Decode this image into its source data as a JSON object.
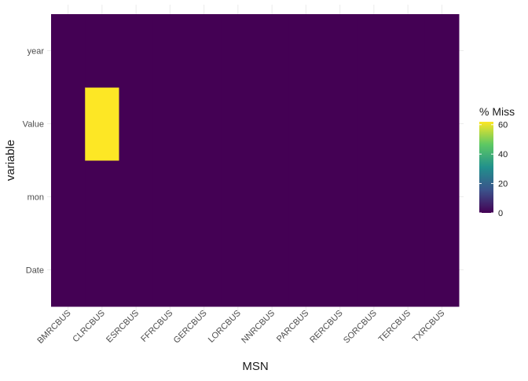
{
  "chart_data": {
    "type": "heatmap",
    "title": "",
    "xlabel": "MSN",
    "ylabel": "variable",
    "x_categories": [
      "BMRCBUS",
      "CLRCBUS",
      "ESRCBUS",
      "FFRCBUS",
      "GERCBUS",
      "LORCBUS",
      "NNRCBUS",
      "PARCBUS",
      "RERCBUS",
      "SORCBUS",
      "TERCBUS",
      "TXRCBUS"
    ],
    "y_categories": [
      "Date",
      "mon",
      "Value",
      "year"
    ],
    "cells": [
      {
        "x": "BMRCBUS",
        "y": "Date",
        "value": 0
      },
      {
        "x": "BMRCBUS",
        "y": "mon",
        "value": 0
      },
      {
        "x": "BMRCBUS",
        "y": "Value",
        "value": 0
      },
      {
        "x": "BMRCBUS",
        "y": "year",
        "value": 0
      },
      {
        "x": "CLRCBUS",
        "y": "Date",
        "value": 0
      },
      {
        "x": "CLRCBUS",
        "y": "mon",
        "value": 0
      },
      {
        "x": "CLRCBUS",
        "y": "Value",
        "value": 62
      },
      {
        "x": "CLRCBUS",
        "y": "year",
        "value": 0
      },
      {
        "x": "ESRCBUS",
        "y": "Date",
        "value": 0
      },
      {
        "x": "ESRCBUS",
        "y": "mon",
        "value": 0
      },
      {
        "x": "ESRCBUS",
        "y": "Value",
        "value": 0
      },
      {
        "x": "ESRCBUS",
        "y": "year",
        "value": 0
      },
      {
        "x": "FFRCBUS",
        "y": "Date",
        "value": 0
      },
      {
        "x": "FFRCBUS",
        "y": "mon",
        "value": 0
      },
      {
        "x": "FFRCBUS",
        "y": "Value",
        "value": 0
      },
      {
        "x": "FFRCBUS",
        "y": "year",
        "value": 0
      },
      {
        "x": "GERCBUS",
        "y": "Date",
        "value": 0
      },
      {
        "x": "GERCBUS",
        "y": "mon",
        "value": 0
      },
      {
        "x": "GERCBUS",
        "y": "Value",
        "value": 0
      },
      {
        "x": "GERCBUS",
        "y": "year",
        "value": 0
      },
      {
        "x": "LORCBUS",
        "y": "Date",
        "value": 0
      },
      {
        "x": "LORCBUS",
        "y": "mon",
        "value": 0
      },
      {
        "x": "LORCBUS",
        "y": "Value",
        "value": 0
      },
      {
        "x": "LORCBUS",
        "y": "year",
        "value": 0
      },
      {
        "x": "NNRCBUS",
        "y": "Date",
        "value": 0
      },
      {
        "x": "NNRCBUS",
        "y": "mon",
        "value": 0
      },
      {
        "x": "NNRCBUS",
        "y": "Value",
        "value": 0
      },
      {
        "x": "NNRCBUS",
        "y": "year",
        "value": 0
      },
      {
        "x": "PARCBUS",
        "y": "Date",
        "value": 0
      },
      {
        "x": "PARCBUS",
        "y": "mon",
        "value": 0
      },
      {
        "x": "PARCBUS",
        "y": "Value",
        "value": 0
      },
      {
        "x": "PARCBUS",
        "y": "year",
        "value": 0
      },
      {
        "x": "RERCBUS",
        "y": "Date",
        "value": 0
      },
      {
        "x": "RERCBUS",
        "y": "mon",
        "value": 0
      },
      {
        "x": "RERCBUS",
        "y": "Value",
        "value": 0
      },
      {
        "x": "RERCBUS",
        "y": "year",
        "value": 0
      },
      {
        "x": "SORCBUS",
        "y": "Date",
        "value": 0
      },
      {
        "x": "SORCBUS",
        "y": "mon",
        "value": 0
      },
      {
        "x": "SORCBUS",
        "y": "Value",
        "value": 0
      },
      {
        "x": "SORCBUS",
        "y": "year",
        "value": 0
      },
      {
        "x": "TERCBUS",
        "y": "Date",
        "value": 0
      },
      {
        "x": "TERCBUS",
        "y": "mon",
        "value": 0
      },
      {
        "x": "TERCBUS",
        "y": "Value",
        "value": 0
      },
      {
        "x": "TERCBUS",
        "y": "year",
        "value": 0
      },
      {
        "x": "TXRCBUS",
        "y": "Date",
        "value": 0
      },
      {
        "x": "TXRCBUS",
        "y": "mon",
        "value": 0
      },
      {
        "x": "TXRCBUS",
        "y": "Value",
        "value": 0
      },
      {
        "x": "TXRCBUS",
        "y": "year",
        "value": 0
      }
    ],
    "legend": {
      "title": "% Miss",
      "ticks": [
        0,
        20,
        40,
        60
      ],
      "range": [
        0,
        62
      ],
      "placement": "right",
      "colormap": "viridis",
      "colors": [
        "#440154",
        "#3b528b",
        "#21908c",
        "#5dc863",
        "#fde725"
      ]
    },
    "grid": true
  }
}
